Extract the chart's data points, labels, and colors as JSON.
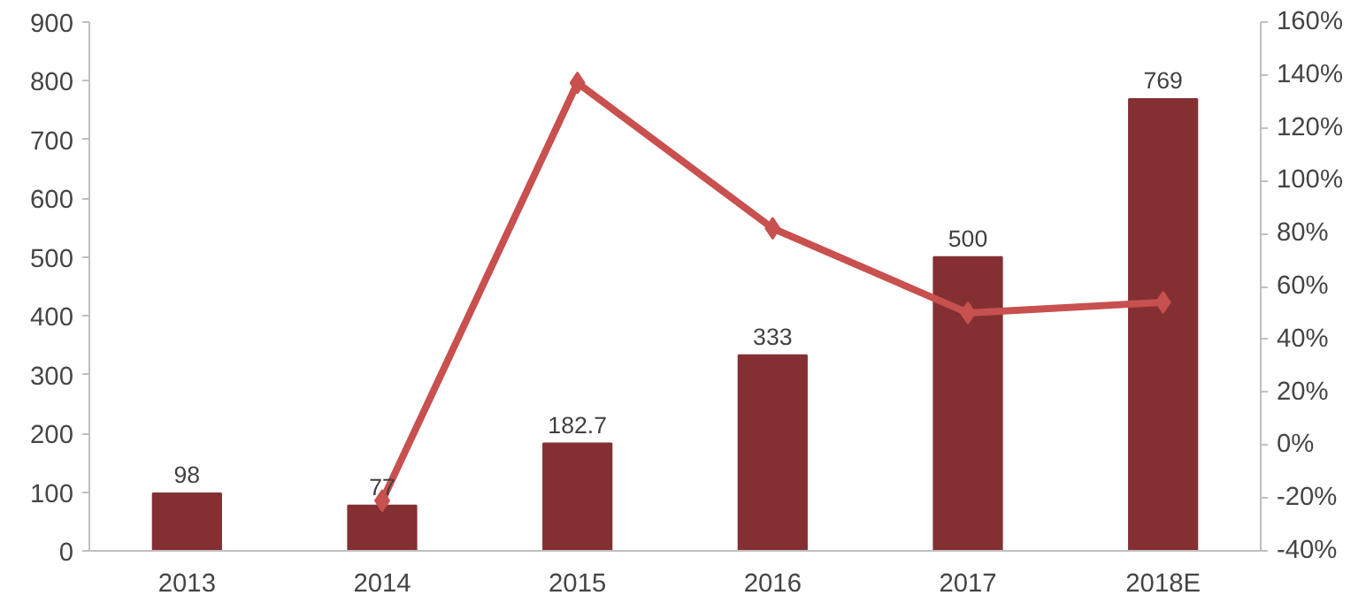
{
  "chart_data": {
    "type": "bar",
    "categories": [
      "2013",
      "2014",
      "2015",
      "2016",
      "2017",
      "2018E"
    ],
    "series": [
      {
        "color": "#843033",
        "values": [
          98,
          77,
          182.7,
          333,
          500,
          769
        ],
        "value_labels": [
          "98",
          "77",
          "182.7",
          "333",
          "500",
          "769"
        ]
      },
      {
        "type": "line",
        "axis": "y2",
        "color": "#c8504f",
        "marker": "diamond",
        "values": [
          null,
          -21,
          137,
          82,
          50,
          54
        ]
      }
    ],
    "ylim": [
      0,
      900
    ],
    "yticks": [
      0,
      100,
      200,
      300,
      400,
      500,
      600,
      700,
      800,
      900
    ],
    "y2lim": [
      -40,
      160
    ],
    "y2ticks": [
      {
        "value": -40,
        "label": "-40%"
      },
      {
        "value": -20,
        "label": "-20%"
      },
      {
        "value": 0,
        "label": "0%"
      },
      {
        "value": 20,
        "label": "20%"
      },
      {
        "value": 40,
        "label": "40%"
      },
      {
        "value": 60,
        "label": "60%"
      },
      {
        "value": 80,
        "label": "80%"
      },
      {
        "value": 100,
        "label": "100%"
      },
      {
        "value": 120,
        "label": "120%"
      },
      {
        "value": 140,
        "label": "140%"
      },
      {
        "value": 160,
        "label": "160%"
      }
    ],
    "grid": false
  }
}
